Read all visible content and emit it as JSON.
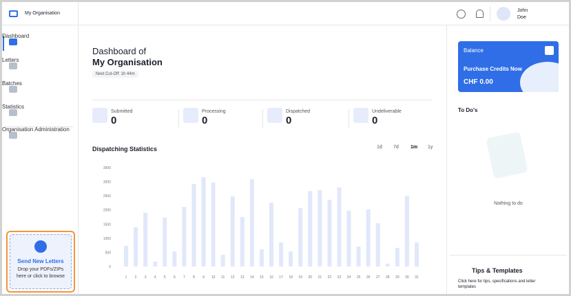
{
  "header": {
    "org": "My Organisation",
    "user_first": "John",
    "user_last": "Doe"
  },
  "nav": [
    "Dashboard",
    "Letters",
    "Batches",
    "Statistics",
    "Organisation Administration"
  ],
  "active_nav": 0,
  "send": {
    "title": "Send New Letters",
    "text": "Drop your PDFs/ZIPs here or click to browse"
  },
  "main": {
    "title_line1": "Dashboard of",
    "title_line2": "My Organisation",
    "cutoff": "Next Cut-Off: 1h 44m",
    "stats": [
      {
        "label": "Submitted",
        "value": 0
      },
      {
        "label": "Processing",
        "value": 0
      },
      {
        "label": "Dispatched",
        "value": 0
      },
      {
        "label": "Undeliverable",
        "value": 0
      }
    ]
  },
  "chart_data": {
    "type": "bar",
    "title": "Dispatching Statistics",
    "ranges": [
      "1d",
      "7d",
      "1m",
      "1y"
    ],
    "active_range": 2,
    "categories": [
      "1",
      "2",
      "3",
      "4",
      "5",
      "6",
      "7",
      "8",
      "9",
      "10",
      "11",
      "12",
      "13",
      "14",
      "15",
      "16",
      "17",
      "18",
      "19",
      "20",
      "21",
      "22",
      "23",
      "24",
      "25",
      "26",
      "27",
      "28",
      "29",
      "30",
      "31"
    ],
    "values": [
      730,
      1390,
      1900,
      170,
      1730,
      530,
      2110,
      2920,
      3160,
      2970,
      410,
      2480,
      1750,
      3090,
      610,
      2260,
      850,
      530,
      2070,
      2670,
      2700,
      2360,
      2800,
      1970,
      700,
      2020,
      1530,
      100,
      660,
      2500,
      850
    ],
    "color": "#e2e8fb",
    "ylim": [
      0,
      3500
    ],
    "yticks": [
      0,
      500,
      1000,
      1500,
      2000,
      2500,
      3000,
      3500
    ]
  },
  "balance": {
    "title": "Balance",
    "action": "Purchase Credits Now",
    "amount": "CHF 0.00"
  },
  "todo": {
    "title": "To Do's",
    "empty": "Nothing to do"
  },
  "tips": {
    "title": "Tips & Templates",
    "text": "Click here for tips, specifications and letter templates"
  }
}
